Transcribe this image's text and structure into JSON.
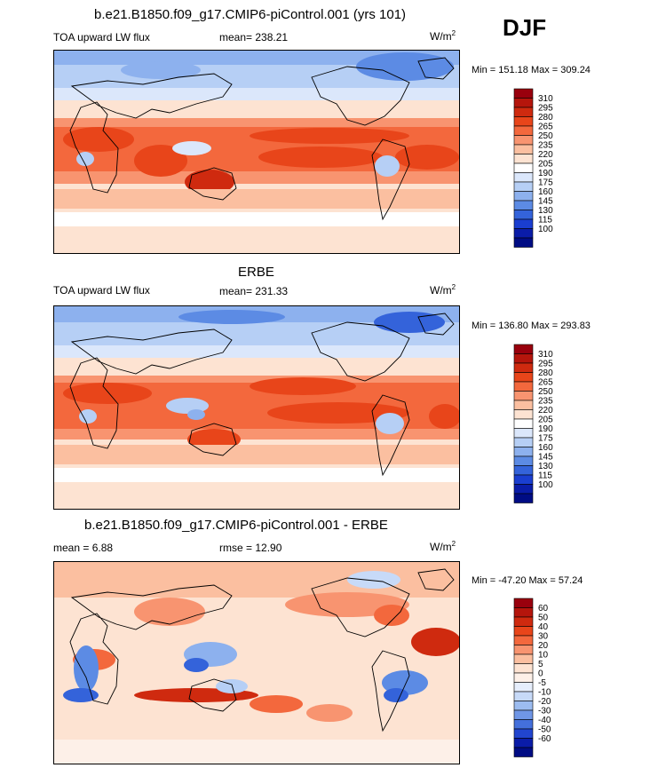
{
  "figure": {
    "season": "DJF",
    "units_base": "W/m",
    "units_exp": "2"
  },
  "panels": [
    {
      "title": "b.e21.B1850.f09_g17.CMIP6-piControl.001 (yrs 101)",
      "left_label": "TOA upward LW flux",
      "center_label": "mean= 238.21",
      "minmax": "Min = 151.18 Max = 309.24"
    },
    {
      "title": "ERBE",
      "left_label": "TOA upward LW flux",
      "center_label": "mean= 231.33",
      "minmax": "Min = 136.80 Max = 293.83"
    },
    {
      "title": "b.e21.B1850.f09_g17.CMIP6-piControl.001 - ERBE",
      "left_label": "mean =   6.88",
      "center_label": "rmse =  12.90",
      "minmax": "Min = -47.20 Max =  57.24"
    }
  ],
  "colorbars": {
    "field_levels": [
      "310",
      "295",
      "280",
      "265",
      "250",
      "235",
      "220",
      "205",
      "190",
      "175",
      "160",
      "145",
      "130",
      "115",
      "100"
    ],
    "field_colors": [
      "#99000d",
      "#b5150c",
      "#cf2a0f",
      "#e8451a",
      "#f3683d",
      "#f89470",
      "#fbbfa0",
      "#fde3d2",
      "#ffffff",
      "#dbe7fb",
      "#b6cff5",
      "#8db1ee",
      "#5c8be4",
      "#3463da",
      "#1a3ed0",
      "#0a1ca8",
      "#000c84"
    ],
    "diff_levels": [
      "60",
      "50",
      "40",
      "30",
      "20",
      "10",
      "5",
      "0",
      "-5",
      "-10",
      "-20",
      "-30",
      "-40",
      "-50",
      "-60"
    ],
    "diff_colors": [
      "#99000d",
      "#b5150c",
      "#cf2a0f",
      "#e8451a",
      "#f3683d",
      "#f89470",
      "#fbbfa0",
      "#fde3d2",
      "#fdf0e8",
      "#e6eefc",
      "#c7daf8",
      "#9cbcf0",
      "#6f96e6",
      "#4470dc",
      "#2145cf",
      "#0a1ca8",
      "#000c84"
    ]
  },
  "chart_data": [
    {
      "type": "heatmap",
      "title": "b.e21.B1850.f09_g17.CMIP6-piControl.001 (yrs 101)",
      "variable": "TOA upward LW flux",
      "season": "DJF",
      "units": "W/m2",
      "mean": 238.21,
      "min": 151.18,
      "max": 309.24,
      "contour_levels": [
        100,
        115,
        130,
        145,
        160,
        175,
        190,
        205,
        220,
        235,
        250,
        265,
        280,
        295,
        310
      ]
    },
    {
      "type": "heatmap",
      "title": "ERBE",
      "variable": "TOA upward LW flux",
      "season": "DJF",
      "units": "W/m2",
      "mean": 231.33,
      "min": 136.8,
      "max": 293.83,
      "contour_levels": [
        100,
        115,
        130,
        145,
        160,
        175,
        190,
        205,
        220,
        235,
        250,
        265,
        280,
        295,
        310
      ]
    },
    {
      "type": "heatmap",
      "title": "b.e21.B1850.f09_g17.CMIP6-piControl.001 - ERBE",
      "variable": "TOA upward LW flux difference",
      "season": "DJF",
      "units": "W/m2",
      "mean": 6.88,
      "rmse": 12.9,
      "min": -47.2,
      "max": 57.24,
      "contour_levels": [
        -60,
        -50,
        -40,
        -30,
        -20,
        -10,
        -5,
        0,
        5,
        10,
        20,
        30,
        40,
        50,
        60
      ]
    }
  ]
}
